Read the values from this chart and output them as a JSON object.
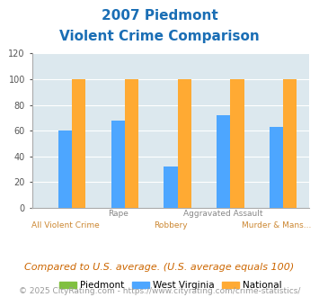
{
  "title_line1": "2007 Piedmont",
  "title_line2": "Violent Crime Comparison",
  "categories": [
    "All Violent Crime",
    "Rape",
    "Robbery",
    "Aggravated Assault",
    "Murder & Mans..."
  ],
  "label_top": [
    "",
    "Rape",
    "",
    "Aggravated Assault",
    ""
  ],
  "label_bottom": [
    "All Violent Crime",
    "",
    "Robbery",
    "",
    "Murder & Mans..."
  ],
  "piedmont": [
    0,
    0,
    0,
    0,
    0
  ],
  "west_virginia": [
    60,
    68,
    32,
    72,
    63
  ],
  "national": [
    100,
    100,
    100,
    100,
    100
  ],
  "bar_color_piedmont": "#80c040",
  "bar_color_wv": "#4da6ff",
  "bar_color_national": "#ffaa33",
  "ylim": [
    0,
    120
  ],
  "yticks": [
    0,
    20,
    40,
    60,
    80,
    100,
    120
  ],
  "plot_bg": "#dce8ee",
  "title_color": "#1a6eb5",
  "label_top_color": "#888888",
  "label_bottom_color": "#cc8833",
  "footnote": "Compared to U.S. average. (U.S. average equals 100)",
  "copyright": "© 2025 CityRating.com - https://www.cityrating.com/crime-statistics/",
  "legend_labels": [
    "Piedmont",
    "West Virginia",
    "National"
  ],
  "title_fontsize": 11,
  "footnote_fontsize": 8,
  "copyright_fontsize": 6.5,
  "tick_label_fontsize": 7,
  "legend_fontsize": 7.5
}
